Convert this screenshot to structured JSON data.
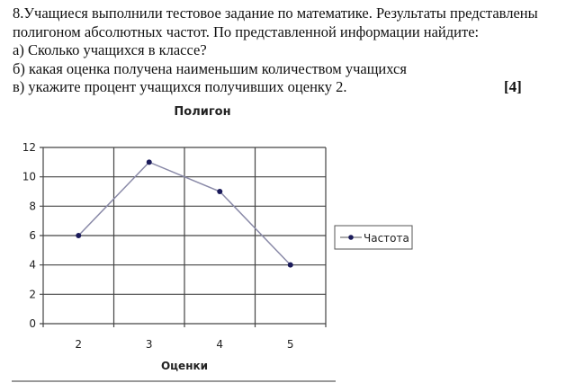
{
  "task": {
    "lines": [
      "8.Учащиеся выполнили тестовое задание по математике. Результаты представлены",
      "полигоном абсолютных частот. По представленной информации найдите:",
      "а) Сколько учащихся в классе?",
      "б) какая оценка получена наименьшим количеством учащихся",
      "в) укажите процент учащихся получивших оценку 2."
    ],
    "marks": "[4]"
  },
  "chart_data": {
    "type": "line",
    "title": "Полигон",
    "xlabel": "Оценки",
    "ylabel": "",
    "categories": [
      "2",
      "3",
      "4",
      "5"
    ],
    "series": [
      {
        "name": "Частота",
        "values": [
          6,
          11,
          9,
          4
        ]
      }
    ],
    "ylim": [
      0,
      12
    ],
    "yticks": [
      0,
      2,
      4,
      6,
      8,
      10,
      12
    ],
    "grid": true,
    "legend": "right",
    "line_color": "#8a8aa8",
    "marker_color": "#1a1a5a"
  }
}
